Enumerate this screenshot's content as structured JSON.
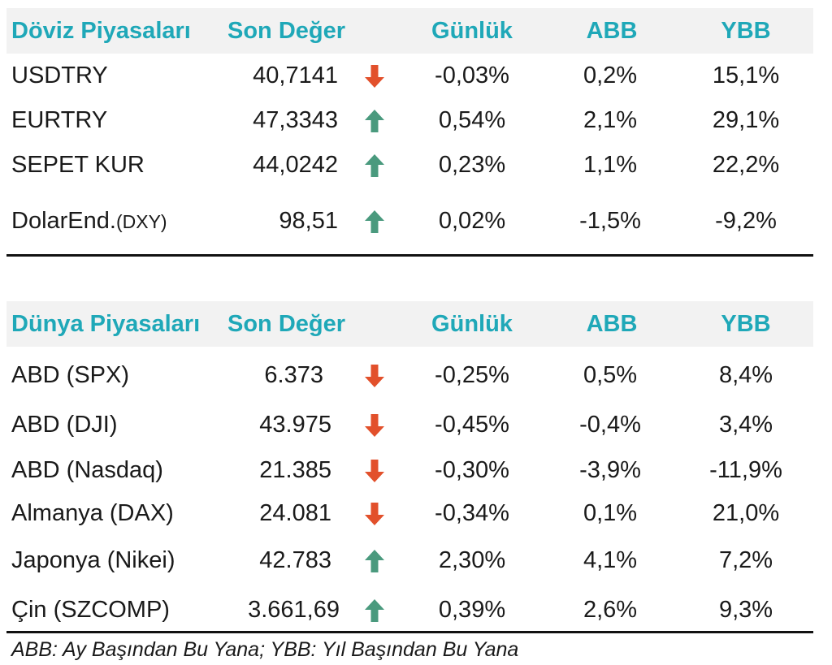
{
  "fx": {
    "headers": {
      "name": "Döviz Piyasaları",
      "value": "Son Değer",
      "daily": "Günlük",
      "abb": "ABB",
      "ybb": "YBB"
    },
    "rows": [
      {
        "name": "USDTRY",
        "suffix": "",
        "value": "40,7141",
        "direction": "down",
        "daily": "-0,03%",
        "abb": "0,2%",
        "ybb": "15,1%"
      },
      {
        "name": "EURTRY",
        "suffix": "",
        "value": "47,3343",
        "direction": "up",
        "daily": "0,54%",
        "abb": "2,1%",
        "ybb": "29,1%"
      },
      {
        "name": "SEPET KUR",
        "suffix": "",
        "value": "44,0242",
        "direction": "up",
        "daily": "0,23%",
        "abb": "1,1%",
        "ybb": "22,2%"
      },
      {
        "name": "DolarEnd.",
        "suffix": "(DXY)",
        "value": "98,51",
        "direction": "up",
        "daily": "0,02%",
        "abb": "-1,5%",
        "ybb": "-9,2%"
      }
    ]
  },
  "world": {
    "headers": {
      "name": "Dünya Piyasaları",
      "value": "Son Değer",
      "daily": "Günlük",
      "abb": "ABB",
      "ybb": "YBB"
    },
    "rows": [
      {
        "name": "ABD (SPX)",
        "value": "6.373",
        "direction": "down",
        "daily": "-0,25%",
        "abb": "0,5%",
        "ybb": "8,4%"
      },
      {
        "name": "ABD (DJI)",
        "value": "43.975",
        "direction": "down",
        "daily": "-0,45%",
        "abb": "-0,4%",
        "ybb": "3,4%"
      },
      {
        "name": "ABD (Nasdaq)",
        "value": "21.385",
        "direction": "down",
        "daily": "-0,30%",
        "abb": "-3,9%",
        "ybb": "-11,9%"
      },
      {
        "name": "Almanya (DAX)",
        "value": "24.081",
        "direction": "down",
        "daily": "-0,34%",
        "abb": "0,1%",
        "ybb": "21,0%"
      },
      {
        "name": "Japonya (Nikei)",
        "value": "42.783",
        "direction": "up",
        "daily": "2,30%",
        "abb": "4,1%",
        "ybb": "7,2%"
      },
      {
        "name": "Çin (SZCOMP)",
        "value": "3.661,69",
        "direction": "up",
        "daily": "0,39%",
        "abb": "2,6%",
        "ybb": "9,3%"
      }
    ]
  },
  "footnote": "ABB: Ay Başından Bu Yana; YBB: Yıl Başından Bu Yana",
  "colors": {
    "accent": "#1fa8b8",
    "up": "#4a9a7e",
    "down": "#e2502b",
    "header_bg": "#f2f2f2"
  },
  "icons": {
    "up": "arrow-up-icon",
    "down": "arrow-down-icon"
  }
}
